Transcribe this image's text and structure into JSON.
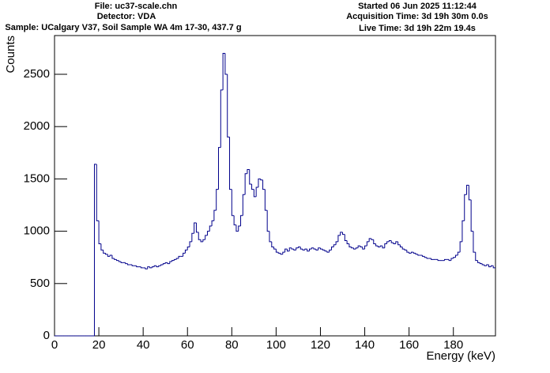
{
  "header": {
    "left": [
      "File: uc37-scale.chn",
      "Detector: VDA",
      "Sample: UCalgary V37, Soil Sample WA 4m 17-30, 437.7 g"
    ],
    "right": [
      "Started 06 Jun 2025 11:12:44",
      "Acquisition Time: 3d 19h 30m 0.0s",
      "Live Time: 3d 19h 22m 19.4s"
    ]
  },
  "chart_data": {
    "type": "histogram",
    "color": "#00008b",
    "x_label": "Energy (keV)",
    "y_label": "Counts",
    "xlim": [
      0,
      199
    ],
    "ylim": [
      0,
      2870
    ],
    "xticks": [
      0,
      20,
      40,
      60,
      80,
      100,
      120,
      140,
      160,
      180
    ],
    "yticks": [
      0,
      500,
      1000,
      1500,
      2000,
      2500
    ],
    "bins": [
      0,
      1,
      2,
      3,
      4,
      5,
      6,
      7,
      8,
      9,
      10,
      11,
      12,
      13,
      14,
      15,
      16,
      17,
      18,
      19,
      20,
      21,
      22,
      23,
      24,
      25,
      26,
      27,
      28,
      29,
      30,
      31,
      32,
      33,
      34,
      35,
      36,
      37,
      38,
      39,
      40,
      41,
      42,
      43,
      44,
      45,
      46,
      47,
      48,
      49,
      50,
      51,
      52,
      53,
      54,
      55,
      56,
      57,
      58,
      59,
      60,
      61,
      62,
      63,
      64,
      65,
      66,
      67,
      68,
      69,
      70,
      71,
      72,
      73,
      74,
      75,
      76,
      77,
      78,
      79,
      80,
      81,
      82,
      83,
      84,
      85,
      86,
      87,
      88,
      89,
      90,
      91,
      92,
      93,
      94,
      95,
      96,
      97,
      98,
      99,
      100,
      101,
      102,
      103,
      104,
      105,
      106,
      107,
      108,
      109,
      110,
      111,
      112,
      113,
      114,
      115,
      116,
      117,
      118,
      119,
      120,
      121,
      122,
      123,
      124,
      125,
      126,
      127,
      128,
      129,
      130,
      131,
      132,
      133,
      134,
      135,
      136,
      137,
      138,
      139,
      140,
      141,
      142,
      143,
      144,
      145,
      146,
      147,
      148,
      149,
      150,
      151,
      152,
      153,
      154,
      155,
      156,
      157,
      158,
      159,
      160,
      161,
      162,
      163,
      164,
      165,
      166,
      167,
      168,
      169,
      170,
      171,
      172,
      173,
      174,
      175,
      176,
      177,
      178,
      179,
      180,
      181,
      182,
      183,
      184,
      185,
      186,
      187,
      188,
      189,
      190,
      191,
      192,
      193,
      194,
      195,
      196,
      197,
      198,
      199
    ],
    "counts": [
      0,
      0,
      0,
      0,
      0,
      0,
      0,
      0,
      0,
      0,
      0,
      0,
      0,
      0,
      0,
      0,
      0,
      0,
      1640,
      1100,
      880,
      820,
      790,
      780,
      760,
      770,
      740,
      730,
      720,
      710,
      700,
      700,
      690,
      680,
      680,
      670,
      670,
      660,
      660,
      650,
      650,
      640,
      660,
      650,
      660,
      670,
      660,
      670,
      680,
      690,
      700,
      690,
      710,
      720,
      730,
      740,
      760,
      760,
      790,
      820,
      850,
      900,
      980,
      1080,
      990,
      920,
      900,
      920,
      960,
      1000,
      1050,
      1100,
      1200,
      1400,
      1800,
      2350,
      2700,
      2500,
      1900,
      1400,
      1150,
      1060,
      1000,
      1050,
      1150,
      1350,
      1550,
      1590,
      1450,
      1400,
      1330,
      1420,
      1500,
      1490,
      1400,
      1200,
      1000,
      900,
      850,
      830,
      800,
      790,
      780,
      800,
      830,
      810,
      840,
      830,
      820,
      840,
      850,
      830,
      820,
      830,
      810,
      830,
      840,
      830,
      820,
      840,
      830,
      820,
      810,
      800,
      820,
      850,
      870,
      900,
      960,
      990,
      970,
      910,
      880,
      850,
      840,
      830,
      840,
      860,
      850,
      830,
      860,
      900,
      930,
      920,
      880,
      860,
      850,
      860,
      840,
      880,
      900,
      910,
      890,
      880,
      900,
      870,
      850,
      830,
      820,
      800,
      790,
      800,
      790,
      780,
      770,
      770,
      760,
      750,
      740,
      740,
      730,
      730,
      730,
      720,
      720,
      720,
      730,
      730,
      720,
      740,
      750,
      770,
      800,
      900,
      1100,
      1350,
      1440,
      1300,
      1000,
      800,
      720,
      700,
      690,
      680,
      670,
      680,
      660,
      670,
      650
    ]
  }
}
